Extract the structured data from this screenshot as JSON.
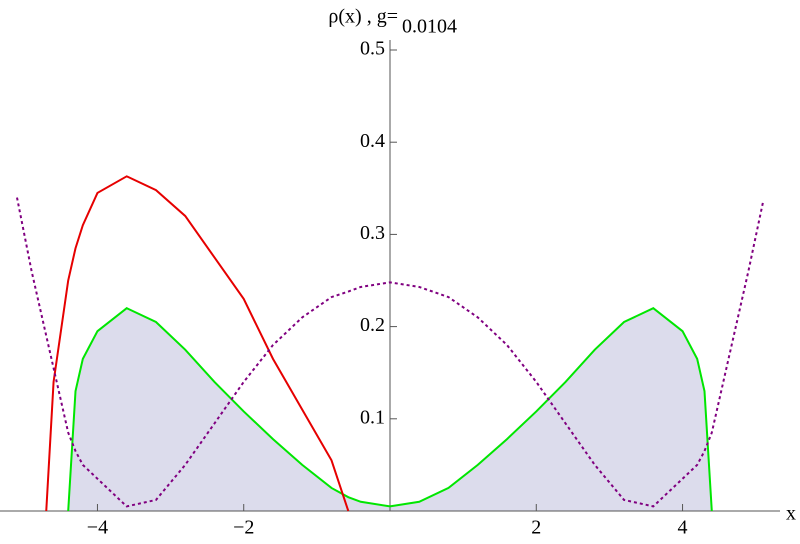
{
  "chart_data": {
    "type": "line",
    "title": "ρ(x) , g=",
    "title_value": "0.0104",
    "xlabel": "x",
    "x": [
      -5.1,
      -4.9,
      -4.7,
      -4.6,
      -4.4,
      -4.3,
      -4.2,
      -4.0,
      -3.6,
      -3.2,
      -2.8,
      -2.4,
      -2.0,
      -1.6,
      -1.2,
      -0.8,
      -0.57,
      -0.4,
      0,
      0.4,
      0.8,
      1.2,
      1.6,
      2.0,
      2.4,
      2.8,
      3.2,
      3.6,
      4.0,
      4.2,
      4.3,
      4.4,
      4.6,
      4.7,
      4.9,
      5.1
    ],
    "series": [
      {
        "color": "#00e600",
        "fill_color": "#dcdcec",
        "style": "solid",
        "values": [
          null,
          null,
          null,
          null,
          0,
          0.13,
          0.165,
          0.195,
          0.22,
          0.205,
          0.175,
          0.14,
          0.108,
          0.078,
          0.05,
          0.025,
          0.015,
          0.01,
          0.005,
          0.01,
          0.025,
          0.05,
          0.078,
          0.108,
          0.14,
          0.175,
          0.205,
          0.22,
          0.195,
          0.165,
          0.13,
          0,
          null,
          null,
          null,
          null
        ]
      },
      {
        "color": "#e60000",
        "style": "solid",
        "values": [
          null,
          null,
          0,
          0.14,
          0.25,
          0.285,
          0.31,
          0.345,
          0.363,
          0.348,
          0.32,
          0.275,
          0.23,
          0.165,
          0.11,
          0.055,
          0,
          null,
          null,
          null,
          null,
          null,
          null,
          null,
          null,
          null,
          null,
          null,
          null,
          null,
          null,
          null,
          null,
          null,
          null,
          null
        ]
      },
      {
        "color": "#800080",
        "style": "dashed",
        "values": [
          0.34,
          0.26,
          0.19,
          0.155,
          0.085,
          0.065,
          0.05,
          0.035,
          0.005,
          0.012,
          0.05,
          0.095,
          0.14,
          0.18,
          0.21,
          0.232,
          0.238,
          0.243,
          0.248,
          0.243,
          0.232,
          0.21,
          0.18,
          0.14,
          0.095,
          0.05,
          0.012,
          0.005,
          0.035,
          0.05,
          0.065,
          0.085,
          0.155,
          0.19,
          0.26,
          0.335
        ]
      }
    ],
    "xlim": [
      -5.1,
      5.1
    ],
    "ylim": [
      0,
      0.5
    ],
    "xticks": [
      {
        "value": -4,
        "label": "−4"
      },
      {
        "value": -2,
        "label": "−2"
      },
      2,
      4
    ],
    "yticks": [
      0.1,
      0.2,
      0.3,
      0.4,
      0.5
    ]
  }
}
